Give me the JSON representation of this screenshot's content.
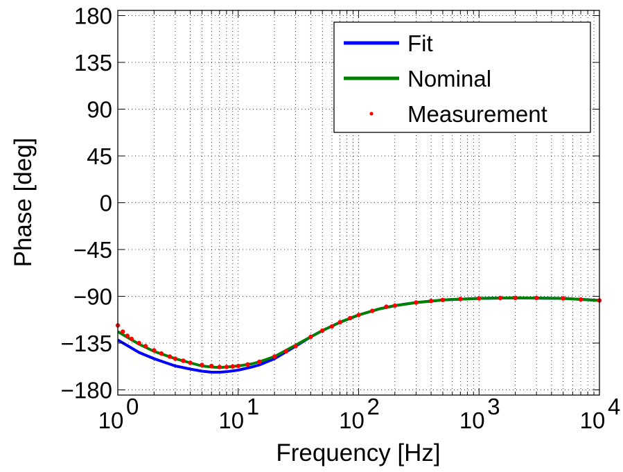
{
  "chart_data": {
    "type": "line",
    "title": "",
    "xlabel": "Frequency [Hz]",
    "ylabel": "Phase [deg]",
    "xscale": "log",
    "xlim": [
      1,
      10000
    ],
    "ylim": [
      -185,
      185
    ],
    "grid": true,
    "legend_position": "top-right",
    "x_ticks": [
      1,
      10,
      100,
      1000,
      10000
    ],
    "x_tick_labels": [
      {
        "base": "10",
        "exp": "0"
      },
      {
        "base": "10",
        "exp": "1"
      },
      {
        "base": "10",
        "exp": "2"
      },
      {
        "base": "10",
        "exp": "3"
      },
      {
        "base": "10",
        "exp": "4"
      }
    ],
    "y_ticks": [
      -180,
      -135,
      -90,
      -45,
      0,
      45,
      90,
      135,
      180
    ],
    "y_tick_labels": [
      "−180",
      "−135",
      "−90",
      "−45",
      "0",
      "45",
      "90",
      "135",
      "180"
    ],
    "series": [
      {
        "name": "Fit",
        "style": "line",
        "color": "#0000ff",
        "points": [
          [
            1,
            -132
          ],
          [
            1.5,
            -144
          ],
          [
            2,
            -150
          ],
          [
            3,
            -157
          ],
          [
            4,
            -160
          ],
          [
            5,
            -162
          ],
          [
            6,
            -163
          ],
          [
            7,
            -163
          ],
          [
            8,
            -162.5
          ],
          [
            10,
            -161
          ],
          [
            13,
            -158
          ],
          [
            15,
            -156
          ],
          [
            20,
            -150
          ],
          [
            30,
            -138
          ],
          [
            40,
            -129
          ],
          [
            50,
            -123
          ],
          [
            70,
            -115
          ],
          [
            100,
            -108
          ],
          [
            150,
            -102
          ],
          [
            200,
            -99
          ],
          [
            300,
            -96
          ],
          [
            500,
            -93.5
          ],
          [
            1000,
            -92
          ],
          [
            2000,
            -91.5
          ],
          [
            5000,
            -92
          ],
          [
            10000,
            -94
          ]
        ]
      },
      {
        "name": "Nominal",
        "style": "line",
        "color": "#008000",
        "points": [
          [
            1,
            -124
          ],
          [
            1.5,
            -136
          ],
          [
            2,
            -143
          ],
          [
            3,
            -150
          ],
          [
            4,
            -154
          ],
          [
            5,
            -157
          ],
          [
            6,
            -158
          ],
          [
            7,
            -158.5
          ],
          [
            8,
            -158
          ],
          [
            10,
            -157
          ],
          [
            13,
            -155
          ],
          [
            15,
            -153
          ],
          [
            20,
            -148
          ],
          [
            30,
            -137
          ],
          [
            40,
            -129
          ],
          [
            50,
            -123
          ],
          [
            70,
            -115
          ],
          [
            100,
            -108
          ],
          [
            150,
            -102
          ],
          [
            200,
            -99
          ],
          [
            300,
            -96
          ],
          [
            500,
            -93.5
          ],
          [
            1000,
            -92
          ],
          [
            2000,
            -91.5
          ],
          [
            5000,
            -92
          ],
          [
            10000,
            -94
          ]
        ]
      },
      {
        "name": "Measurement",
        "style": "markers",
        "color": "#ff0000",
        "points": [
          [
            1,
            -118
          ],
          [
            1.1,
            -124
          ],
          [
            1.2,
            -128
          ],
          [
            1.3,
            -131
          ],
          [
            1.5,
            -135
          ],
          [
            1.7,
            -138
          ],
          [
            2,
            -142
          ],
          [
            2.3,
            -145
          ],
          [
            2.7,
            -148
          ],
          [
            3,
            -150
          ],
          [
            3.5,
            -152
          ],
          [
            4,
            -154
          ],
          [
            5,
            -156
          ],
          [
            6,
            -157
          ],
          [
            7,
            -158
          ],
          [
            8,
            -158
          ],
          [
            9,
            -157.5
          ],
          [
            10,
            -157
          ],
          [
            12,
            -155.5
          ],
          [
            15,
            -153
          ],
          [
            20,
            -148
          ],
          [
            25,
            -143
          ],
          [
            30,
            -138
          ],
          [
            40,
            -129
          ],
          [
            50,
            -123
          ],
          [
            60,
            -119
          ],
          [
            70,
            -115
          ],
          [
            85,
            -111
          ],
          [
            100,
            -108
          ],
          [
            130,
            -104
          ],
          [
            170,
            -100
          ],
          [
            200,
            -99
          ],
          [
            300,
            -96
          ],
          [
            400,
            -94.5
          ],
          [
            500,
            -93.5
          ],
          [
            700,
            -92.5
          ],
          [
            1000,
            -92
          ],
          [
            1500,
            -91.5
          ],
          [
            2000,
            -91.5
          ],
          [
            3000,
            -91.5
          ],
          [
            5000,
            -92
          ],
          [
            7000,
            -93
          ],
          [
            10000,
            -94
          ]
        ]
      }
    ]
  }
}
